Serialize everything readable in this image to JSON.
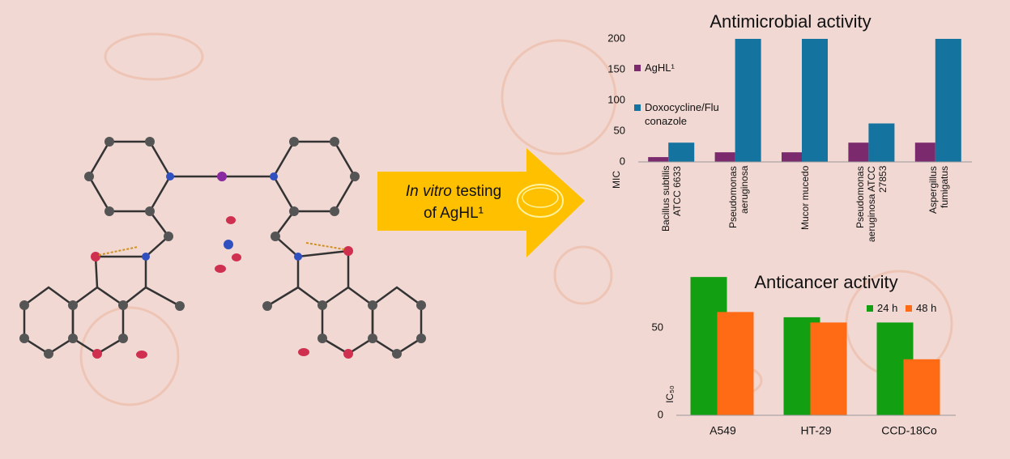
{
  "arrow": {
    "italic": "In vitro",
    "line1": "testing",
    "line2": "of AgHL¹"
  },
  "chart_data": [
    {
      "type": "bar",
      "title": "Antimicrobial activity",
      "y_label": "MIC",
      "categories": [
        "Bacillus subtilis ATCC 6633",
        "Pseudomonas aeruginosa",
        "Mucor mucedo",
        "Pseudomonas aeruginosa ATCC 27853",
        "Aspergillus fumigatus"
      ],
      "series": [
        {
          "name": "AgHL¹",
          "color": "#7b2a6e",
          "values": [
            7.8,
            15.6,
            15.6,
            31.3,
            31.3
          ]
        },
        {
          "name": "Doxocycline/Fluconazole",
          "color": "#14739f",
          "values": [
            31.3,
            200,
            200,
            62.5,
            200
          ]
        }
      ],
      "ylim": [
        0,
        200
      ],
      "yticks": [
        0,
        50,
        100,
        150,
        200
      ],
      "grid": false
    },
    {
      "type": "bar",
      "title": "Anticancer activity",
      "y_label": "IC₅₀",
      "categories": [
        "A549",
        "HT-29",
        "CCD-18Co"
      ],
      "series": [
        {
          "name": "24 h",
          "color": "#12a012",
          "values": [
            79,
            56,
            53
          ]
        },
        {
          "name": "48 h",
          "color": "#ff6a14",
          "values": [
            59,
            53,
            32
          ]
        }
      ],
      "ylim": [
        0,
        80
      ],
      "yticks": [
        0,
        50
      ],
      "grid": false
    }
  ]
}
